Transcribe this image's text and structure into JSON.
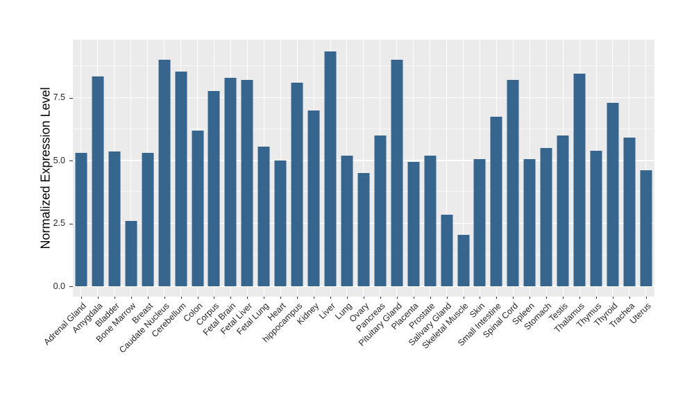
{
  "chart_data": {
    "type": "bar",
    "title": "",
    "xlabel": "",
    "ylabel": "Normalized Expression Level",
    "categories": [
      "Adrenal Gland",
      "Amygdala",
      "Bladder",
      "Bone Marrow",
      "Breast",
      "Caudate Nucleus",
      "Cerebellum",
      "Colon",
      "Corpus",
      "Fetal Brain",
      "Fetal Liver",
      "Fetal Lung",
      "Heart",
      "hippocampus",
      "Kidney",
      "Liver",
      "Lung",
      "Ovary",
      "Pancreas",
      "Pituitary Gland",
      "Placenta",
      "Prostate",
      "Salivary Gland",
      "Skeletal Muscle",
      "Skin",
      "Small Intestine",
      "Spinal Cord",
      "Spleen",
      "Stomach",
      "Testis",
      "Thalamus",
      "Thymus",
      "Thyroid",
      "Trachea",
      "Uterus"
    ],
    "values": [
      5.3,
      8.35,
      5.35,
      2.6,
      5.3,
      9.0,
      8.55,
      6.2,
      7.75,
      8.3,
      8.2,
      5.55,
      5.0,
      8.1,
      7.0,
      9.35,
      5.2,
      4.5,
      6.0,
      9.0,
      4.95,
      5.2,
      2.85,
      2.05,
      5.05,
      6.75,
      8.2,
      5.05,
      5.5,
      6.0,
      8.45,
      5.4,
      7.3,
      5.9,
      4.6
    ],
    "y_ticks": [
      {
        "label": "0.0",
        "value": 0.0
      },
      {
        "label": "2.5",
        "value": 2.5
      },
      {
        "label": "5.0",
        "value": 5.0
      },
      {
        "label": "7.5",
        "value": 7.5
      }
    ],
    "ylim": [
      0,
      9.9
    ],
    "grid": true,
    "legend_position": "none",
    "colors": {
      "bar_fill": "#36658D",
      "panel_background": "#EBEBEB",
      "gridline": "#FFFFFF",
      "tick_text": "#262626",
      "axis_title_text": "#000000"
    }
  }
}
